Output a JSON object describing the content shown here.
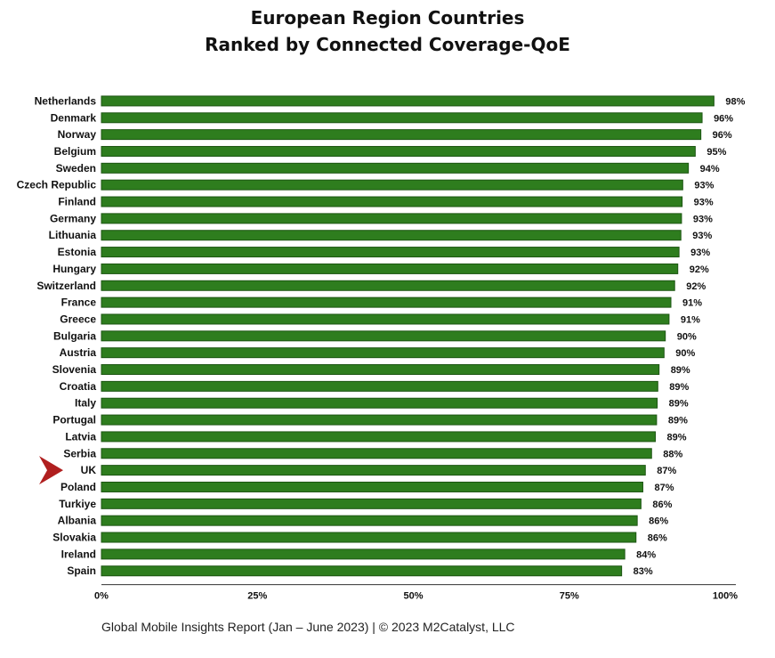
{
  "title_line1": "European Region Countries",
  "title_line2": "Ranked by Connected Coverage-QoE",
  "footer": "Global Mobile Insights Report (Jan – June 2023) | © 2023 M2Catalyst, LLC",
  "colors": {
    "bar": "#2e7d1e",
    "bar_stroke": "#1c5512",
    "highlight_arrow": "#b01f1f"
  },
  "chart_data": {
    "type": "bar",
    "orientation": "horizontal",
    "categories": [
      "Netherlands",
      "Denmark",
      "Norway",
      "Belgium",
      "Sweden",
      "Czech Republic",
      "Finland",
      "Germany",
      "Lithuania",
      "Estonia",
      "Hungary",
      "Switzerland",
      "France",
      "Greece",
      "Bulgaria",
      "Austria",
      "Slovenia",
      "Croatia",
      "Italy",
      "Portugal",
      "Latvia",
      "Serbia",
      "UK",
      "Poland",
      "Turkiye",
      "Albania",
      "Slovakia",
      "Ireland",
      "Spain"
    ],
    "values": [
      98.2,
      96.3,
      96.1,
      95.2,
      94.1,
      93.2,
      93.1,
      93.0,
      92.9,
      92.6,
      92.4,
      91.9,
      91.3,
      91.0,
      90.4,
      90.2,
      89.4,
      89.2,
      89.1,
      89.0,
      88.8,
      88.2,
      87.2,
      86.8,
      86.5,
      85.9,
      85.7,
      83.9,
      83.4
    ],
    "value_labels": [
      "98%",
      "96%",
      "96%",
      "95%",
      "94%",
      "93%",
      "93%",
      "93%",
      "93%",
      "93%",
      "92%",
      "92%",
      "91%",
      "91%",
      "90%",
      "90%",
      "89%",
      "89%",
      "89%",
      "89%",
      "89%",
      "88%",
      "87%",
      "87%",
      "86%",
      "86%",
      "86%",
      "84%",
      "83%"
    ],
    "xlim": [
      0,
      100
    ],
    "x_ticks": [
      0,
      25,
      50,
      75,
      100
    ],
    "x_tick_labels": [
      "0%",
      "25%",
      "50%",
      "75%",
      "100%"
    ],
    "highlighted_category": "UK",
    "grid": false,
    "legend": "none"
  }
}
